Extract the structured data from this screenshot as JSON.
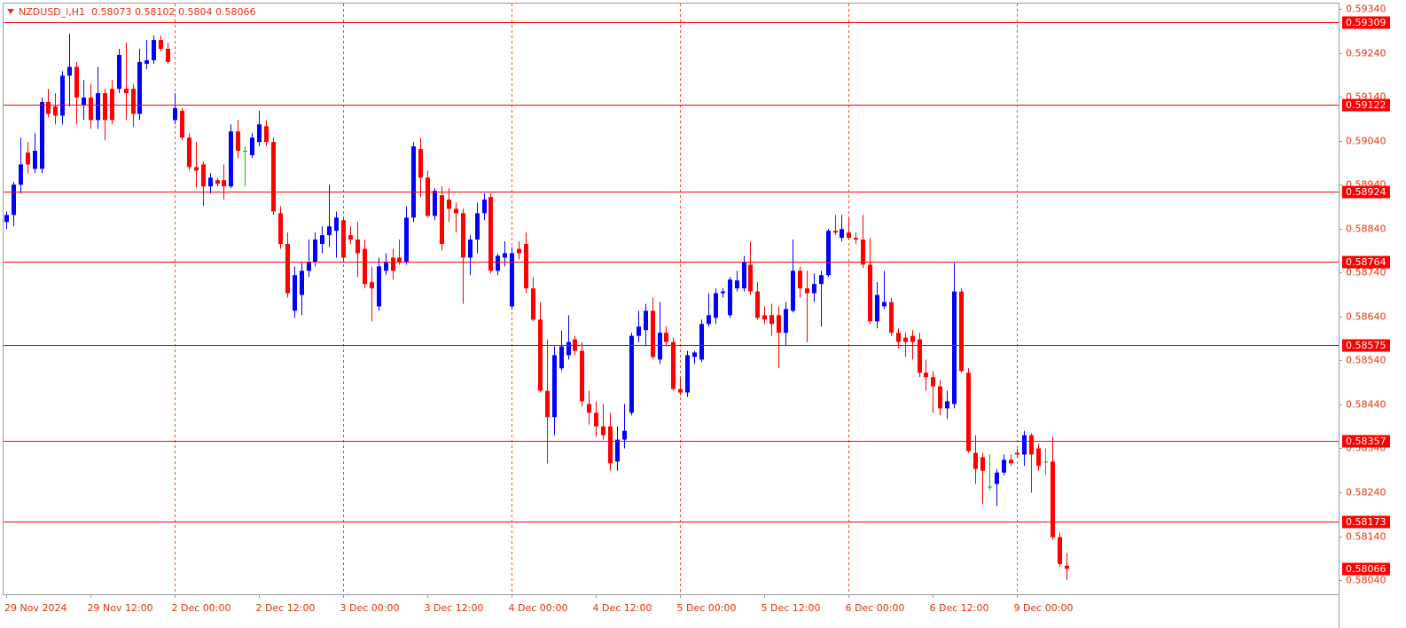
{
  "chart_data": {
    "type": "candlestick",
    "title": "NZDUSD_i,H1",
    "categories": [
      "29 Nov 2024",
      null,
      null,
      null,
      null,
      null,
      null,
      null,
      null,
      null,
      null,
      null,
      "29 Nov 12:00",
      null,
      null,
      null,
      null,
      null,
      null,
      null,
      null,
      null,
      null,
      null,
      "2 Dec 00:00",
      null,
      null,
      null,
      null,
      null,
      null,
      null,
      null,
      null,
      null,
      null,
      "2 Dec 12:00",
      null,
      null,
      null,
      null,
      null,
      null,
      null,
      null,
      null,
      null,
      null,
      "3 Dec 00:00",
      null,
      null,
      null,
      null,
      null,
      null,
      null,
      null,
      null,
      null,
      null,
      "3 Dec 12:00",
      null,
      null,
      null,
      null,
      null,
      null,
      null,
      null,
      null,
      null,
      null,
      "4 Dec 00:00",
      null,
      null,
      null,
      null,
      null,
      null,
      null,
      null,
      null,
      null,
      null,
      "4 Dec 12:00",
      null,
      null,
      null,
      null,
      null,
      null,
      null,
      null,
      null,
      null,
      null,
      "5 Dec 00:00",
      null,
      null,
      null,
      null,
      null,
      null,
      null,
      null,
      null,
      null,
      null,
      "5 Dec 12:00",
      null,
      null,
      null,
      null,
      null,
      null,
      null,
      null,
      null,
      null,
      null,
      "6 Dec 00:00",
      null,
      null,
      null,
      null,
      null,
      null,
      null,
      null,
      null,
      null,
      null,
      "6 Dec 12:00",
      null,
      null,
      null,
      null,
      null,
      null,
      null,
      null,
      null,
      null,
      null,
      "9 Dec 00:00",
      null,
      null,
      null,
      null,
      null,
      null,
      null
    ],
    "open": [
      0.58855,
      0.58871,
      0.5894,
      0.59013,
      0.58976,
      0.58976,
      0.59128,
      0.59118,
      0.59097,
      0.59188,
      0.59208,
      0.59122,
      0.59138,
      0.59087,
      0.59148,
      0.59158,
      0.59158,
      0.59158,
      0.59158,
      0.59101,
      0.59215,
      0.59223,
      0.59269,
      0.59249,
      0.59087,
      0.59108,
      0.59047,
      0.5898,
      0.58986,
      0.58936,
      0.5895,
      0.5895,
      0.58936,
      0.59061,
      0.59017,
      0.59007,
      0.59037,
      0.59073,
      0.59037,
      0.58875,
      0.58805,
      0.58653,
      0.58689,
      0.58744,
      0.58764,
      0.58805,
      0.58825,
      0.58835,
      0.58859,
      0.58825,
      0.58815,
      0.58794,
      0.58718,
      0.58663,
      0.58744,
      0.58774,
      0.58774,
      0.58764,
      0.58865,
      0.59021,
      0.58956,
      0.58869,
      0.58916,
      0.58906,
      0.58885,
      0.58875,
      0.58774,
      0.58815,
      0.58875,
      0.58912,
      0.58744,
      0.58774,
      0.58663,
      0.58794,
      0.58805,
      0.58704,
      0.58633,
      0.58471,
      0.58411,
      0.58522,
      0.58552,
      0.58588,
      0.58562,
      0.58441,
      0.58421,
      0.5839,
      0.5839,
      0.5831,
      0.5836,
      0.58421,
      0.58596,
      0.58609,
      0.58653,
      0.58542,
      0.58603,
      0.58582,
      0.58475,
      0.58467,
      0.58548,
      0.58542,
      0.58623,
      0.58637,
      0.58693,
      0.58643,
      0.58704,
      0.58704,
      0.58758,
      0.58697,
      0.58643,
      0.58643,
      0.58643,
      0.58603,
      0.58653,
      0.58744,
      0.58704,
      0.58693,
      0.58714,
      0.58734,
      0.58835,
      0.58819,
      0.58831,
      0.58819,
      0.58815,
      0.58758,
      0.58629,
      0.58663,
      0.58673,
      0.58603,
      0.58592,
      0.58596,
      0.58588,
      0.58512,
      0.58502,
      0.58481,
      0.58431,
      0.58441,
      0.58697,
      0.58512,
      0.5833,
      0.5832,
      0.58253,
      0.58259,
      0.58285,
      0.58314,
      0.5833,
      0.58326,
      0.5837,
      0.5834,
      0.5831,
      0.5831,
      0.58138,
      0.58073
    ],
    "high": [
      0.58879,
      0.58946,
      0.59047,
      0.59037,
      0.59057,
      0.59138,
      0.59158,
      0.59148,
      0.59198,
      0.59283,
      0.59219,
      0.59178,
      0.59168,
      0.59208,
      0.59158,
      0.59178,
      0.59249,
      0.59263,
      0.59168,
      0.59249,
      0.59269,
      0.59279,
      0.59279,
      0.59263,
      0.59148,
      0.59114,
      0.59057,
      0.59037,
      0.58992,
      0.58966,
      0.58956,
      0.58986,
      0.59077,
      0.59087,
      0.59027,
      0.59057,
      0.59108,
      0.59087,
      0.59047,
      0.58891,
      0.58831,
      0.58754,
      0.58764,
      0.58815,
      0.58831,
      0.58845,
      0.5894,
      0.58879,
      0.58865,
      0.58845,
      0.58855,
      0.58815,
      0.58754,
      0.58774,
      0.58784,
      0.58794,
      0.58815,
      0.58891,
      0.59037,
      0.59047,
      0.58972,
      0.58932,
      0.58936,
      0.58932,
      0.58899,
      0.58885,
      0.58825,
      0.58899,
      0.5892,
      0.5892,
      0.58784,
      0.58811,
      0.58798,
      0.58811,
      0.58831,
      0.5873,
      0.58673,
      0.58588,
      0.58572,
      0.58608,
      0.58643,
      0.58596,
      0.58582,
      0.58471,
      0.58447,
      0.58441,
      0.58421,
      0.5839,
      0.58441,
      0.58603,
      0.58653,
      0.58669,
      0.58683,
      0.58673,
      0.58617,
      0.58592,
      0.58502,
      0.58562,
      0.58562,
      0.58633,
      0.58693,
      0.58704,
      0.58704,
      0.5873,
      0.58744,
      0.58778,
      0.58811,
      0.58718,
      0.58663,
      0.58669,
      0.58663,
      0.58673,
      0.58815,
      0.58754,
      0.58744,
      0.58738,
      0.58744,
      0.58839,
      0.58871,
      0.58871,
      0.58865,
      0.58831,
      0.58871,
      0.58819,
      0.58718,
      0.58744,
      0.58683,
      0.58613,
      0.58603,
      0.58609,
      0.58603,
      0.58542,
      0.58516,
      0.58495,
      0.58471,
      0.58762,
      0.58704,
      0.58522,
      0.5837,
      0.5833,
      0.58326,
      0.58293,
      0.58326,
      0.58326,
      0.5834,
      0.5838,
      0.58374,
      0.5835,
      0.5834,
      0.58366,
      0.58148,
      0.58102
    ],
    "low": [
      0.58839,
      0.58845,
      0.5892,
      0.58966,
      0.58966,
      0.58966,
      0.59093,
      0.59077,
      0.59077,
      0.59118,
      0.59077,
      0.59087,
      0.59067,
      0.59067,
      0.59041,
      0.59077,
      0.59148,
      0.59087,
      0.59071,
      0.59087,
      0.59203,
      0.59215,
      0.59243,
      0.59215,
      0.59077,
      0.59041,
      0.58972,
      0.58932,
      0.58891,
      0.5892,
      0.58936,
      0.58906,
      0.58932,
      0.59,
      0.58936,
      0.59,
      0.59027,
      0.59027,
      0.58871,
      0.58794,
      0.58683,
      0.58637,
      0.58643,
      0.5873,
      0.58754,
      0.58784,
      0.58798,
      0.58774,
      0.58764,
      0.58805,
      0.5873,
      0.58704,
      0.58629,
      0.58653,
      0.58734,
      0.58724,
      0.58758,
      0.58758,
      0.58855,
      0.58912,
      0.58865,
      0.58859,
      0.5879,
      0.58855,
      0.58831,
      0.58669,
      0.58734,
      0.58784,
      0.58859,
      0.58738,
      0.58734,
      0.58754,
      0.58657,
      0.5877,
      0.58693,
      0.58629,
      0.58467,
      0.58306,
      0.5837,
      0.58516,
      0.58542,
      0.58552,
      0.58435,
      0.58394,
      0.58366,
      0.5836,
      0.58289,
      0.58289,
      0.5834,
      0.58415,
      0.58582,
      0.58572,
      0.58542,
      0.58532,
      0.58572,
      0.58471,
      0.58461,
      0.58457,
      0.58532,
      0.58536,
      0.58617,
      0.58623,
      0.58683,
      0.58637,
      0.58697,
      0.58697,
      0.58689,
      0.58633,
      0.58623,
      0.58596,
      0.58522,
      0.58572,
      0.58649,
      0.58683,
      0.58582,
      0.58673,
      0.58617,
      0.5873,
      0.58825,
      0.58811,
      0.58815,
      0.58805,
      0.5875,
      0.58623,
      0.58613,
      0.58657,
      0.58596,
      0.58568,
      0.58548,
      0.58542,
      0.58502,
      0.58471,
      0.58421,
      0.58415,
      0.58407,
      0.58431,
      0.58512,
      0.5833,
      0.58259,
      0.58213,
      0.58245,
      0.58209,
      0.58279,
      0.583,
      0.5832,
      0.583,
      0.58239,
      0.58289,
      0.58279,
      0.58132,
      0.58071,
      0.5804
    ],
    "close": [
      0.58871,
      0.5894,
      0.58986,
      0.58986,
      0.59017,
      0.59128,
      0.59101,
      0.59097,
      0.59188,
      0.59208,
      0.59138,
      0.59138,
      0.59087,
      0.59148,
      0.59087,
      0.59087,
      0.59235,
      0.59148,
      0.59101,
      0.59219,
      0.59223,
      0.59269,
      0.59249,
      0.59219,
      0.59114,
      0.59047,
      0.5898,
      0.58972,
      0.58936,
      0.58956,
      0.58942,
      0.58936,
      0.59061,
      0.59017,
      0.59017,
      0.59047,
      0.59077,
      0.59037,
      0.58879,
      0.58805,
      0.58693,
      0.58734,
      0.58744,
      0.58764,
      0.58815,
      0.58825,
      0.58845,
      0.58865,
      0.58774,
      0.58815,
      0.58784,
      0.58714,
      0.58704,
      0.58754,
      0.58764,
      0.58744,
      0.58764,
      0.58865,
      0.59027,
      0.58956,
      0.58869,
      0.58926,
      0.58805,
      0.58885,
      0.58875,
      0.58774,
      0.58815,
      0.58875,
      0.58906,
      0.58744,
      0.58778,
      0.58784,
      0.58784,
      0.58784,
      0.58704,
      0.58633,
      0.58471,
      0.58411,
      0.58552,
      0.58572,
      0.58582,
      0.58562,
      0.58447,
      0.58421,
      0.5839,
      0.5837,
      0.58306,
      0.5836,
      0.5838,
      0.58596,
      0.58617,
      0.58653,
      0.58548,
      0.58603,
      0.58582,
      0.58475,
      0.58467,
      0.58552,
      0.58558,
      0.58623,
      0.58643,
      0.58693,
      0.58697,
      0.58724,
      0.58722,
      0.58764,
      0.58697,
      0.58637,
      0.58633,
      0.58623,
      0.58603,
      0.58657,
      0.58744,
      0.58704,
      0.58693,
      0.58714,
      0.58734,
      0.58835,
      0.58831,
      0.58839,
      0.58819,
      0.58815,
      0.58758,
      0.58629,
      0.58689,
      0.58673,
      0.58603,
      0.58582,
      0.58582,
      0.58582,
      0.58512,
      0.58502,
      0.58481,
      0.58431,
      0.58447,
      0.58697,
      0.58516,
      0.58334,
      0.58293,
      0.58289,
      0.58253,
      0.58285,
      0.58314,
      0.58306,
      0.58326,
      0.5837,
      0.58326,
      0.583,
      0.5831,
      0.58138,
      0.58077,
      0.58066
    ],
    "up_color": "#0000ff",
    "down_color": "#ff0000",
    "doji_color": "#00c000",
    "ylim": [
      0.58008,
      0.59352
    ],
    "yticks": [
      {
        "value": 0.5934,
        "label": "0.59340"
      },
      {
        "value": 0.5924,
        "label": "0.59240"
      },
      {
        "value": 0.5914,
        "label": "0.59140"
      },
      {
        "value": 0.5904,
        "label": "0.59040"
      },
      {
        "value": 0.5894,
        "label": "0.58940"
      },
      {
        "value": 0.5884,
        "label": "0.58840"
      },
      {
        "value": 0.5874,
        "label": "0.58740"
      },
      {
        "value": 0.5864,
        "label": "0.58640"
      },
      {
        "value": 0.5854,
        "label": "0.58540"
      },
      {
        "value": 0.5844,
        "label": "0.58440"
      },
      {
        "value": 0.5834,
        "label": "0.58340"
      },
      {
        "value": 0.5824,
        "label": "0.58240"
      },
      {
        "value": 0.5814,
        "label": "0.58140"
      },
      {
        "value": 0.5804,
        "label": "0.58040"
      }
    ],
    "levels": [
      0.59309,
      0.59122,
      0.58924,
      0.58764,
      0.58575,
      0.58357,
      0.58173
    ],
    "level_color": "#ff0000",
    "grid": true
  }
}
